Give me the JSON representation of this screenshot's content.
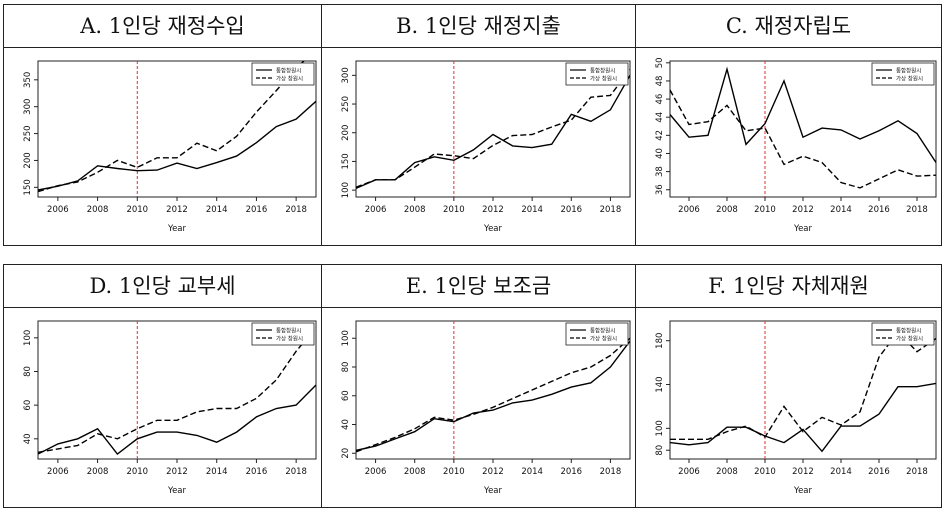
{
  "chart_data": [
    {
      "id": "A",
      "type": "line",
      "title": "A. 1인당 재정수입",
      "xlabel": "Year",
      "ylabel": "",
      "x": [
        2005,
        2006,
        2007,
        2008,
        2009,
        2010,
        2011,
        2012,
        2013,
        2014,
        2015,
        2016,
        2017,
        2018,
        2019
      ],
      "xticks": [
        2006,
        2008,
        2010,
        2012,
        2014,
        2016,
        2018
      ],
      "yticks": [
        150,
        200,
        250,
        300,
        350
      ],
      "ylim": [
        132,
        385
      ],
      "vline": 2010,
      "legend_position": "top-right",
      "series": [
        {
          "name": "통합창원시",
          "style": "solid",
          "values": [
            145,
            152,
            162,
            190,
            185,
            181,
            182,
            195,
            185,
            196,
            208,
            233,
            263,
            277,
            310
          ]
        },
        {
          "name": "가상 창원시",
          "style": "dashed",
          "values": [
            142,
            153,
            160,
            178,
            200,
            187,
            205,
            205,
            232,
            218,
            245,
            290,
            330,
            372,
            405
          ]
        }
      ]
    },
    {
      "id": "B",
      "type": "line",
      "title": "B. 1인당 재정지출",
      "xlabel": "Year",
      "ylabel": "",
      "x": [
        2005,
        2006,
        2007,
        2008,
        2009,
        2010,
        2011,
        2012,
        2013,
        2014,
        2015,
        2016,
        2017,
        2018,
        2019
      ],
      "xticks": [
        2006,
        2008,
        2010,
        2012,
        2014,
        2016,
        2018
      ],
      "yticks": [
        100,
        150,
        200,
        250,
        300
      ],
      "ylim": [
        88,
        325
      ],
      "vline": 2010,
      "legend_position": "top-right",
      "series": [
        {
          "name": "통합창원시",
          "style": "solid",
          "values": [
            103,
            118,
            118,
            148,
            158,
            152,
            170,
            197,
            177,
            174,
            180,
            232,
            220,
            240,
            300
          ]
        },
        {
          "name": "가상 창원시",
          "style": "dashed",
          "values": [
            105,
            118,
            118,
            140,
            163,
            160,
            155,
            178,
            195,
            197,
            210,
            222,
            262,
            265,
            310
          ]
        }
      ]
    },
    {
      "id": "C",
      "type": "line",
      "title": "C. 재정자립도",
      "xlabel": "Year",
      "ylabel": "",
      "x": [
        2005,
        2006,
        2007,
        2008,
        2009,
        2010,
        2011,
        2012,
        2013,
        2014,
        2015,
        2016,
        2017,
        2018,
        2019
      ],
      "xticks": [
        2006,
        2008,
        2010,
        2012,
        2014,
        2016,
        2018
      ],
      "yticks": [
        36,
        38,
        40,
        42,
        44,
        46,
        48,
        50
      ],
      "ylim": [
        35.2,
        50.2
      ],
      "vline": 2010,
      "legend_position": "top-right",
      "series": [
        {
          "name": "통합창원시",
          "style": "solid",
          "values": [
            44.3,
            41.8,
            42.0,
            49.3,
            41.0,
            43.3,
            48.0,
            41.8,
            42.8,
            42.6,
            41.6,
            42.5,
            43.6,
            42.2,
            39.0
          ]
        },
        {
          "name": "가상 창원시",
          "style": "dashed",
          "values": [
            47.0,
            43.2,
            43.5,
            45.3,
            42.5,
            42.8,
            38.8,
            39.7,
            39.0,
            36.8,
            36.2,
            37.2,
            38.2,
            37.5,
            37.6
          ]
        }
      ]
    },
    {
      "id": "D",
      "type": "line",
      "title": "D. 1인당 교부세",
      "xlabel": "Year",
      "ylabel": "",
      "x": [
        2005,
        2006,
        2007,
        2008,
        2009,
        2010,
        2011,
        2012,
        2013,
        2014,
        2015,
        2016,
        2017,
        2018,
        2019
      ],
      "xticks": [
        2006,
        2008,
        2010,
        2012,
        2014,
        2016,
        2018
      ],
      "yticks": [
        40,
        60,
        80,
        100
      ],
      "ylim": [
        28,
        110
      ],
      "vline": 2010,
      "legend_position": "top-right",
      "series": [
        {
          "name": "통합창원시",
          "style": "solid",
          "values": [
            31,
            37,
            40,
            46,
            31,
            40,
            44,
            44,
            42,
            38,
            44,
            53,
            58,
            60,
            72
          ]
        },
        {
          "name": "가상 창원시",
          "style": "dashed",
          "values": [
            32,
            34,
            36,
            43,
            40,
            46,
            51,
            51,
            56,
            58,
            58,
            64,
            75,
            92,
            106
          ]
        }
      ]
    },
    {
      "id": "E",
      "type": "line",
      "title": "E. 1인당 보조금",
      "xlabel": "Year",
      "ylabel": "",
      "x": [
        2005,
        2006,
        2007,
        2008,
        2009,
        2010,
        2011,
        2012,
        2013,
        2014,
        2015,
        2016,
        2017,
        2018,
        2019
      ],
      "xticks": [
        2006,
        2008,
        2010,
        2012,
        2014,
        2016,
        2018
      ],
      "yticks": [
        20,
        40,
        60,
        80,
        100
      ],
      "ylim": [
        16,
        112
      ],
      "vline": 2010,
      "legend_position": "top-right",
      "series": [
        {
          "name": "통합창원시",
          "style": "solid",
          "values": [
            22,
            25,
            30,
            35,
            44,
            42,
            48,
            50,
            55,
            57,
            61,
            66,
            69,
            80,
            98
          ]
        },
        {
          "name": "가상 창원시",
          "style": "dashed",
          "values": [
            21,
            26,
            31,
            37,
            45,
            43,
            47,
            52,
            58,
            64,
            70,
            76,
            80,
            88,
            100
          ]
        }
      ]
    },
    {
      "id": "F",
      "type": "line",
      "title": "F. 1인당 자체재원",
      "xlabel": "Year",
      "ylabel": "",
      "x": [
        2005,
        2006,
        2007,
        2008,
        2009,
        2010,
        2011,
        2012,
        2013,
        2014,
        2015,
        2016,
        2017,
        2018,
        2019
      ],
      "xticks": [
        2006,
        2008,
        2010,
        2012,
        2014,
        2016,
        2018
      ],
      "yticks": [
        80,
        100,
        140,
        180
      ],
      "ylim": [
        72,
        198
      ],
      "vline": 2010,
      "legend_position": "top-right",
      "series": [
        {
          "name": "통합창원시",
          "style": "solid",
          "values": [
            87,
            85,
            87,
            101,
            101,
            93,
            87,
            99,
            79,
            102,
            102,
            113,
            138,
            138,
            141
          ]
        },
        {
          "name": "가상 창원시",
          "style": "dashed",
          "values": [
            90,
            90,
            90,
            97,
            102,
            92,
            120,
            97,
            110,
            103,
            115,
            165,
            188,
            170,
            182
          ]
        }
      ]
    }
  ]
}
